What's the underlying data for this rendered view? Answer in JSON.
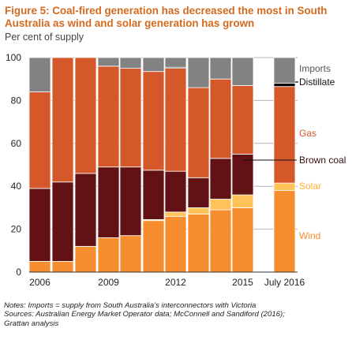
{
  "title": "Figure 5: Coal-fired generation has decreased the most in South Australia as wind and solar generation has grown",
  "subtitle": "Per cent of supply",
  "notes": [
    "Notes: Imports = supply from South Australia's interconnectors with Victoria",
    "Sources: Australian Energy Market Operator data; McConnell and Sandiford (2016);",
    "Grattan analysis"
  ],
  "colors": {
    "Wind": "#f68d2e",
    "Solar": "#ffc35a",
    "Brown coal": "#621214",
    "Gas": "#d4582a",
    "Distillate": "#000000",
    "Imports": "#828282"
  },
  "chart_data": {
    "type": "bar",
    "stacked": true,
    "ylim": [
      0,
      100
    ],
    "yticks": [
      0,
      20,
      40,
      60,
      80,
      100
    ],
    "xtick_labels": [
      "2006",
      "2009",
      "2012",
      "2015",
      "July 2016"
    ],
    "categories": [
      "2006",
      "2007",
      "2008",
      "2009",
      "2010",
      "2011",
      "2012",
      "2013",
      "2014",
      "2015",
      "July 2016"
    ],
    "series": [
      {
        "name": "Wind",
        "values": [
          5,
          5,
          12,
          16,
          17,
          24,
          26,
          27,
          29,
          30,
          38
        ]
      },
      {
        "name": "Solar",
        "values": [
          0,
          0,
          0,
          0,
          0,
          0.5,
          2,
          3,
          5,
          6,
          3.5
        ]
      },
      {
        "name": "Brown coal",
        "values": [
          34,
          37,
          34,
          33,
          32,
          23,
          19,
          14,
          19,
          19,
          0
        ]
      },
      {
        "name": "Gas",
        "values": [
          45,
          58,
          54,
          47,
          46,
          46,
          48,
          42,
          37,
          32,
          45
        ]
      },
      {
        "name": "Distillate",
        "values": [
          0,
          0,
          0,
          0,
          0,
          0,
          0.5,
          0,
          0,
          0,
          1.5
        ]
      },
      {
        "name": "Imports",
        "values": [
          16,
          0,
          0,
          4,
          5,
          6.5,
          4.5,
          14,
          10,
          13,
          12
        ]
      }
    ],
    "legend_labels": [
      "Imports",
      "Distillate",
      "Gas",
      "Brown coal",
      "Solar",
      "Wind"
    ]
  }
}
